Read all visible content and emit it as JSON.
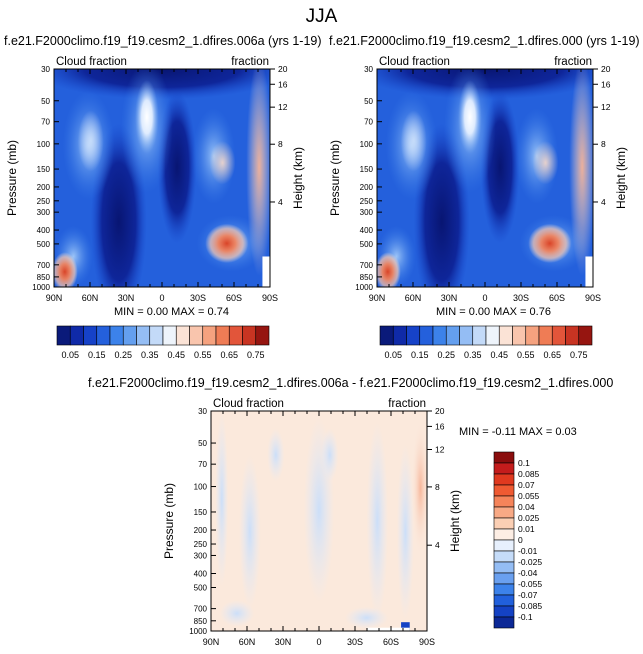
{
  "figure_title": "JJA",
  "chart_data": [
    {
      "type": "heatmap",
      "title": "f.e21.F2000climo.f19_f19.cesm2_1.dfires.006a (yrs 1-19)",
      "left_corner_label": "Cloud fraction",
      "right_corner_label": "fraction",
      "xlabel": "",
      "ylabel": "Pressure (mb)",
      "ylabel_right": "Height (km)",
      "x_ticks": [
        "90N",
        "60N",
        "30N",
        "0",
        "30S",
        "60S",
        "90S"
      ],
      "y_ticks": [
        "30",
        "50",
        "70",
        "100",
        "150",
        "200",
        "250",
        "300",
        "400",
        "500",
        "700",
        "850",
        "1000"
      ],
      "y_ticks_right": [
        "20",
        "16",
        "12",
        "8",
        "4"
      ],
      "ylim": [
        1000,
        30
      ],
      "yscale": "log",
      "min_label": "MIN =  0.00  MAX =  0.74",
      "min": 0.0,
      "max": 0.74
    },
    {
      "type": "heatmap",
      "title": "f.e21.F2000climo.f19_f19.cesm2_1.dfires.000 (yrs 1-19)",
      "left_corner_label": "Cloud fraction",
      "right_corner_label": "fraction",
      "xlabel": "",
      "ylabel": "Pressure (mb)",
      "ylabel_right": "Height (km)",
      "x_ticks": [
        "90N",
        "60N",
        "30N",
        "0",
        "30S",
        "60S",
        "90S"
      ],
      "y_ticks": [
        "30",
        "50",
        "70",
        "100",
        "150",
        "200",
        "250",
        "300",
        "400",
        "500",
        "700",
        "850",
        "1000"
      ],
      "y_ticks_right": [
        "20",
        "16",
        "12",
        "8",
        "4"
      ],
      "ylim": [
        1000,
        30
      ],
      "yscale": "log",
      "min_label": "MIN =  0.00  MAX =  0.76",
      "min": 0.0,
      "max": 0.76
    },
    {
      "type": "heatmap",
      "title": "f.e21.F2000climo.f19_f19.cesm2_1.dfires.006a - f.e21.F2000climo.f19_f19.cesm2_1.dfires.000",
      "left_corner_label": "Cloud fraction",
      "right_corner_label": "fraction",
      "xlabel": "",
      "ylabel": "Pressure (mb)",
      "ylabel_right": "Height (km)",
      "x_ticks": [
        "90N",
        "60N",
        "30N",
        "0",
        "30S",
        "60S",
        "90S"
      ],
      "y_ticks": [
        "30",
        "50",
        "70",
        "100",
        "150",
        "200",
        "250",
        "300",
        "400",
        "500",
        "700",
        "850",
        "1000"
      ],
      "y_ticks_right": [
        "20",
        "16",
        "12",
        "8",
        "4"
      ],
      "ylim": [
        1000,
        30
      ],
      "yscale": "log",
      "min_label": "MIN = -0.11   MAX =  0.03",
      "min": -0.11,
      "max": 0.03
    }
  ],
  "colorbar_main": {
    "colors": [
      "#0a1a7a",
      "#0f2aa8",
      "#1642c8",
      "#2460dc",
      "#3c82ea",
      "#649fef",
      "#94bdf4",
      "#c3daf8",
      "#eef4fb",
      "#fbe3d6",
      "#f9c5ad",
      "#f5a27f",
      "#ef7c55",
      "#e2553a",
      "#c83422",
      "#961510"
    ],
    "labels": [
      "0.05",
      "0.15",
      "0.25",
      "0.35",
      "0.45",
      "0.55",
      "0.65",
      "0.75"
    ]
  },
  "colorbar_diff": {
    "colors": [
      "#8a0d0d",
      "#c41c1c",
      "#e0391f",
      "#ef5a32",
      "#f5845a",
      "#f8a985",
      "#fbcfb4",
      "#fdeee4",
      "#e7f0fd",
      "#c5dcf9",
      "#94bdf4",
      "#6aa0ef",
      "#3c82ea",
      "#2160dc",
      "#1442c4",
      "#0c2896"
    ],
    "labels": [
      "0.1",
      "0.085",
      "0.07",
      "0.055",
      "0.04",
      "0.025",
      "0.01",
      "0",
      "-0.01",
      "-0.025",
      "-0.04",
      "-0.055",
      "-0.07",
      "-0.085",
      "-0.1"
    ]
  }
}
